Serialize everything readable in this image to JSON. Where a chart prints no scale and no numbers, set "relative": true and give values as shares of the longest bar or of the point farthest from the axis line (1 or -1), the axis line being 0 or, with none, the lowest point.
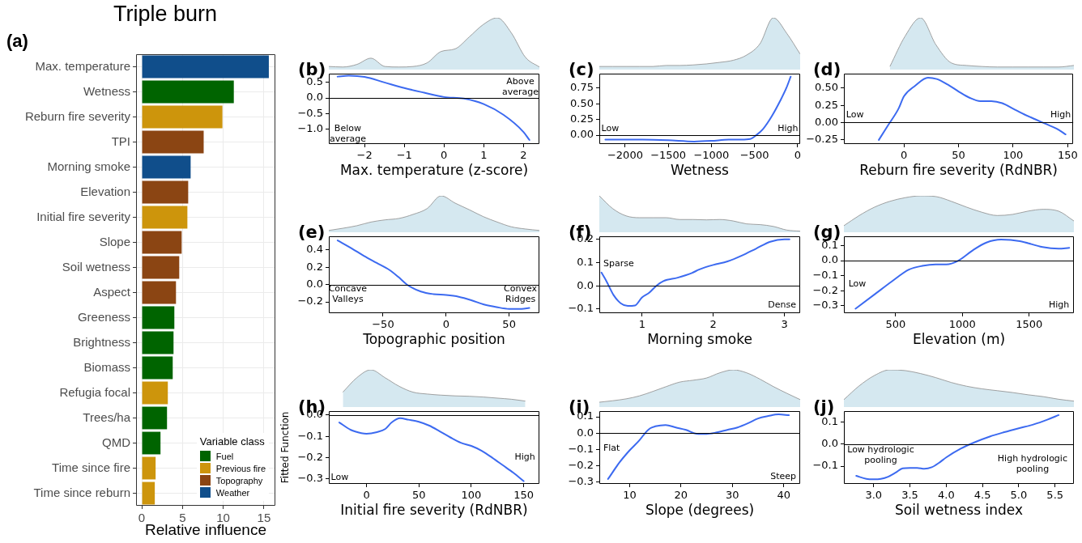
{
  "chart_data": [
    {
      "type": "bar",
      "orientation": "horizontal",
      "stacked": true,
      "title": "Triple burn",
      "xlabel": "Relative influence",
      "legend_title": "Variable class",
      "legend": "bottom right",
      "grid": true,
      "annotations": [
        "(a)"
      ],
      "categories": [
        "Max. temperature",
        "Wetness",
        "Reburn fire severity",
        "TPI",
        "Morning smoke",
        "Elevation",
        "Initial fire severity",
        "Slope",
        "Soil wetness",
        "Aspect",
        "Greeness",
        "Brightness",
        "Biomass",
        "Refugia focal",
        "Trees/ha",
        "QMD",
        "Time since fire",
        "Time since reburn"
      ],
      "series": [
        {
          "name": "Fuel",
          "color": "#006400",
          "values": [
            null,
            11.3,
            null,
            null,
            null,
            null,
            null,
            null,
            null,
            null,
            4.0,
            3.9,
            3.8,
            null,
            3.1,
            2.3,
            null,
            null
          ]
        },
        {
          "name": "Previous fire",
          "color": "#cd950c",
          "values": [
            null,
            null,
            9.9,
            null,
            null,
            null,
            5.6,
            null,
            null,
            null,
            null,
            null,
            null,
            3.2,
            null,
            null,
            1.7,
            1.6
          ]
        },
        {
          "name": "Topography",
          "color": "#8b4513",
          "values": [
            null,
            null,
            null,
            7.6,
            null,
            5.7,
            null,
            4.9,
            4.6,
            4.2,
            null,
            null,
            null,
            null,
            null,
            null,
            null,
            null
          ]
        },
        {
          "name": "Weather",
          "color": "#104e8b",
          "values": [
            15.6,
            null,
            null,
            null,
            6.0,
            null,
            null,
            null,
            null,
            null,
            null,
            null,
            null,
            null,
            null,
            null,
            null,
            null
          ]
        }
      ],
      "xlim": [
        -0.7,
        16.4
      ],
      "xticks": [
        0,
        5,
        10,
        15
      ]
    },
    {
      "type": "area",
      "relative": true,
      "tick_labels": false,
      "color": "#d5e8f0",
      "annotations": [
        "(b)"
      ],
      "categories": [
        null,
        null,
        null,
        null,
        null,
        null,
        null,
        null,
        null,
        null,
        null,
        null,
        null,
        null,
        null,
        null
      ],
      "values": [
        0.06,
        0.05,
        0.1,
        0.22,
        0.06,
        0.05,
        0.06,
        0.13,
        0.35,
        0.4,
        0.63,
        0.87,
        1,
        0.71,
        0.24,
        0.05
      ]
    },
    {
      "type": "line",
      "color": "#3c6af0",
      "xlabel": "Max. temperature (z-score)",
      "annotations": [
        "Below\naverage",
        "Above\naverage"
      ],
      "ref_lines": [
        {
          "axis": "y",
          "value": 0
        }
      ],
      "x": [
        -2.68,
        -2.4,
        -2,
        -1.5,
        -1,
        -0.5,
        0,
        0.5,
        1,
        1.5,
        2,
        2.15
      ],
      "values": [
        0.69,
        0.72,
        0.68,
        0.5,
        0.32,
        0.17,
        0.03,
        -0.02,
        -0.2,
        -0.55,
        -1.1,
        -1.36
      ],
      "xlim": [
        -2.9,
        2.4
      ],
      "xticks": [
        {
          "value": -2,
          "label": "−2"
        },
        {
          "value": -1,
          "label": "−1"
        },
        0,
        1,
        2
      ],
      "ylim": [
        -1.49,
        0.79
      ],
      "yticks": [
        {
          "value": -1,
          "label": "−1.0"
        },
        {
          "value": -0.5,
          "label": "−0.5"
        },
        {
          "value": 0,
          "label": "0.0"
        },
        0.5
      ]
    },
    {
      "type": "area",
      "relative": true,
      "tick_labels": false,
      "color": "#d5e8f0",
      "annotations": [
        "(c)"
      ],
      "categories": [
        null,
        null,
        null,
        null,
        null,
        null,
        null,
        null,
        null,
        null,
        null,
        null,
        null,
        null,
        null,
        null
      ],
      "values": [
        0.06,
        0.06,
        0.06,
        0.06,
        0.06,
        0.08,
        0.08,
        0.09,
        0.11,
        0.14,
        0.18,
        0.28,
        0.5,
        1,
        0.7,
        0.3
      ]
    },
    {
      "type": "line",
      "color": "#3c6af0",
      "xlabel": "Wetness",
      "annotations": [
        "Low",
        "High"
      ],
      "ref_lines": [
        {
          "axis": "y",
          "value": 0
        }
      ],
      "x": [
        -2230,
        -1800,
        -1500,
        -1200,
        -1000,
        -800,
        -650,
        -550,
        -480,
        -400,
        -300,
        -200,
        -130,
        -80
      ],
      "values": [
        -0.07,
        -0.07,
        -0.08,
        -0.1,
        -0.09,
        -0.07,
        -0.07,
        -0.06,
        0,
        0.1,
        0.3,
        0.55,
        0.75,
        0.93
      ],
      "xlim": [
        -2300,
        30
      ],
      "xticks": [
        {
          "value": -2000,
          "label": "−2000"
        },
        {
          "value": -1500,
          "label": "−1500"
        },
        {
          "value": -1000,
          "label": "−1000"
        },
        {
          "value": -500,
          "label": "−500"
        },
        0
      ],
      "ylim": [
        -0.14,
        0.98
      ],
      "yticks": [
        {
          "value": 0,
          "label": "0.00"
        },
        0.25,
        {
          "value": 0.5,
          "label": "0.50"
        },
        0.75
      ]
    },
    {
      "type": "area",
      "relative": true,
      "tick_labels": false,
      "color": "#d5e8f0",
      "annotations": [
        "(d)"
      ],
      "categories": [
        null,
        null,
        null,
        null,
        null,
        null,
        null,
        null,
        null,
        null,
        null,
        null,
        null,
        null,
        null,
        null
      ],
      "values": [
        null,
        null,
        null,
        0.06,
        0.65,
        1,
        0.48,
        0.13,
        0.08,
        0.06,
        0.05,
        0.05,
        0.05,
        0.05,
        0.05,
        0.08
      ]
    },
    {
      "type": "line",
      "color": "#3c6af0",
      "xlabel": "Reburn fire severity (RdNBR)",
      "annotations": [
        "Low",
        "High"
      ],
      "ref_lines": [
        {
          "axis": "y",
          "value": 0
        }
      ],
      "x": [
        -23,
        -15,
        -5,
        0,
        10,
        22,
        30,
        40,
        50,
        60,
        70,
        80,
        90,
        100,
        110,
        120,
        130,
        140,
        148
      ],
      "values": [
        -0.25,
        -0.05,
        0.2,
        0.38,
        0.53,
        0.65,
        0.63,
        0.55,
        0.45,
        0.36,
        0.31,
        0.31,
        0.28,
        0.2,
        0.12,
        0.05,
        -0.02,
        -0.09,
        -0.17
      ],
      "xlim": [
        -55,
        155
      ],
      "xticks": [
        0,
        50,
        100,
        150
      ],
      "ylim": [
        -0.31,
        0.71
      ],
      "yticks": [
        {
          "value": -0.25,
          "label": "−0.25"
        },
        {
          "value": 0,
          "label": "0.00"
        },
        0.25,
        {
          "value": 0.5,
          "label": "0.50"
        }
      ]
    },
    {
      "type": "area",
      "relative": true,
      "tick_labels": false,
      "color": "#d5e8f0",
      "annotations": [
        "(e)"
      ],
      "categories": [
        null,
        null,
        null,
        null,
        null,
        null,
        null,
        null,
        null,
        null,
        null,
        null,
        null,
        null,
        null,
        null
      ],
      "values": [
        0.05,
        0.11,
        0.18,
        0.28,
        0.34,
        0.38,
        0.49,
        0.65,
        1,
        0.8,
        0.62,
        0.43,
        0.28,
        0.15,
        0.09,
        0.05
      ]
    },
    {
      "type": "line",
      "color": "#3c6af0",
      "xlabel": "Topographic position",
      "annotations": [
        "Concave\nValleys",
        "Convex\nRidges"
      ],
      "ref_lines": [
        {
          "axis": "y",
          "value": 0
        }
      ],
      "x": [
        -86,
        -75,
        -65,
        -55,
        -45,
        -38,
        -31,
        -20,
        -10,
        0,
        10,
        20,
        30,
        40,
        50,
        60,
        66
      ],
      "values": [
        0.51,
        0.42,
        0.33,
        0.25,
        0.17,
        0.09,
        0,
        -0.08,
        -0.11,
        -0.12,
        -0.14,
        -0.18,
        -0.23,
        -0.26,
        -0.28,
        -0.28,
        -0.27
      ],
      "xlim": [
        -93,
        74
      ],
      "xticks": [
        {
          "value": -50,
          "label": "−50"
        },
        0,
        50
      ],
      "ylim": [
        -0.33,
        0.56
      ],
      "yticks": [
        {
          "value": -0.2,
          "label": "−0.2"
        },
        {
          "value": 0,
          "label": "0.0"
        },
        0.2,
        0.4
      ]
    },
    {
      "type": "area",
      "relative": true,
      "tick_labels": false,
      "color": "#d5e8f0",
      "annotations": [
        "(f)"
      ],
      "categories": [
        null,
        null,
        null,
        null,
        null,
        null,
        null,
        null,
        null,
        null,
        null,
        null,
        null,
        null,
        null,
        null
      ],
      "values": [
        1,
        0.65,
        0.45,
        0.4,
        0.4,
        0.4,
        0.35,
        0.35,
        0.34,
        0.35,
        0.31,
        0.23,
        0.21,
        0.16,
        0.06,
        0.03
      ]
    },
    {
      "type": "line",
      "color": "#3c6af0",
      "xlabel": "Morning smoke",
      "annotations": [
        "Sparse",
        "Dense"
      ],
      "ref_lines": [
        {
          "axis": "y",
          "value": 0
        }
      ],
      "x": [
        0.43,
        0.5,
        0.6,
        0.7,
        0.8,
        0.9,
        1.0,
        1.1,
        1.2,
        1.3,
        1.5,
        1.7,
        1.8,
        2.0,
        2.2,
        2.4,
        2.6,
        2.8,
        3.0,
        3.07
      ],
      "values": [
        0.057,
        0.02,
        -0.04,
        -0.075,
        -0.087,
        -0.085,
        -0.05,
        -0.03,
        0.0,
        0.02,
        0.035,
        0.055,
        0.07,
        0.09,
        0.105,
        0.13,
        0.16,
        0.19,
        0.2,
        0.2
      ],
      "xlim": [
        0.4,
        3.22
      ],
      "xticks": [
        1,
        2,
        3
      ],
      "ylim": [
        -0.118,
        0.214
      ],
      "yticks": [
        {
          "value": -0.1,
          "label": "−0.1"
        },
        {
          "value": 0,
          "label": "0.0"
        },
        0.1,
        0.2
      ]
    },
    {
      "type": "area",
      "relative": true,
      "tick_labels": false,
      "color": "#d5e8f0",
      "annotations": [
        "(g)"
      ],
      "categories": [
        null,
        null,
        null,
        null,
        null,
        null,
        null,
        null,
        null,
        null,
        null,
        null,
        null,
        null,
        null,
        null
      ],
      "values": [
        0.18,
        0.46,
        0.69,
        0.85,
        0.95,
        1,
        0.98,
        0.85,
        0.69,
        0.55,
        0.46,
        0.49,
        0.58,
        0.63,
        0.58,
        0.31
      ]
    },
    {
      "type": "line",
      "color": "#3c6af0",
      "xlabel": "Elevation (m)",
      "annotations": [
        "Low",
        "High"
      ],
      "ref_lines": [
        {
          "axis": "y",
          "value": 0
        }
      ],
      "x": [
        200,
        350,
        470,
        600,
        700,
        800,
        880,
        970,
        1080,
        1180,
        1290,
        1430,
        1600,
        1720,
        1800
      ],
      "values": [
        -0.32,
        -0.22,
        -0.14,
        -0.06,
        -0.035,
        -0.025,
        -0.025,
        0.0,
        0.07,
        0.12,
        0.14,
        0.13,
        0.09,
        0.08,
        0.085
      ],
      "xlim": [
        113,
        1835
      ],
      "xticks": [
        500,
        1000,
        1500
      ],
      "ylim": [
        -0.35,
        0.163
      ],
      "yticks": [
        {
          "value": -0.3,
          "label": "−0.3"
        },
        {
          "value": -0.2,
          "label": "−0.2"
        },
        {
          "value": -0.1,
          "label": "−0.1"
        },
        {
          "value": 0,
          "label": "0.0"
        },
        0.1
      ]
    },
    {
      "type": "area",
      "relative": true,
      "tick_labels": false,
      "color": "#d5e8f0",
      "annotations": [
        "(h)"
      ],
      "categories": [
        null,
        null,
        null,
        null,
        null,
        null,
        null,
        null,
        null,
        null,
        null,
        null,
        null,
        null,
        null,
        null
      ],
      "values": [
        null,
        0.4,
        0.79,
        1,
        0.79,
        0.56,
        0.4,
        0.35,
        0.32,
        0.3,
        0.29,
        0.27,
        0.24,
        0.21,
        0.16,
        null
      ]
    },
    {
      "type": "line",
      "color": "#3c6af0",
      "xlabel": "Initial fire severity (RdNBR)",
      "ylabel": "Fitted Function",
      "annotations": [
        "Low",
        "High"
      ],
      "ref_lines": [
        {
          "axis": "y",
          "value": 0
        }
      ],
      "x": [
        -26,
        -15,
        -5,
        0,
        10,
        18,
        24,
        32,
        40,
        50,
        60,
        70,
        80,
        90,
        100,
        110,
        120,
        130,
        140,
        150
      ],
      "values": [
        -0.035,
        -0.07,
        -0.085,
        -0.088,
        -0.08,
        -0.065,
        -0.035,
        -0.015,
        -0.022,
        -0.032,
        -0.05,
        -0.077,
        -0.105,
        -0.13,
        -0.145,
        -0.168,
        -0.2,
        -0.235,
        -0.27,
        -0.31
      ],
      "xlim": [
        -36,
        165
      ],
      "xticks": [
        0,
        50,
        100,
        150
      ],
      "ylim": [
        -0.323,
        0.019
      ],
      "yticks": [
        {
          "value": -0.3,
          "label": "−0.3"
        },
        {
          "value": -0.2,
          "label": "−0.2"
        },
        {
          "value": -0.1,
          "label": "−0.1"
        },
        {
          "value": 0,
          "label": "0.0"
        }
      ]
    },
    {
      "type": "area",
      "relative": true,
      "tick_labels": false,
      "color": "#d5e8f0",
      "annotations": [
        "(i)"
      ],
      "categories": [
        null,
        null,
        null,
        null,
        null,
        null,
        null,
        null,
        null,
        null,
        null,
        null,
        null,
        null,
        null,
        null
      ],
      "values": [
        0.13,
        0.17,
        0.22,
        0.3,
        0.42,
        0.55,
        0.67,
        0.72,
        0.78,
        0.92,
        1,
        0.92,
        0.75,
        0.55,
        0.37,
        0.2
      ]
    },
    {
      "type": "line",
      "color": "#3c6af0",
      "xlabel": "Slope (degrees)",
      "annotations": [
        "Flat",
        "Steep"
      ],
      "ref_lines": [
        {
          "axis": "y",
          "value": 0
        }
      ],
      "x": [
        5.8,
        8,
        10,
        12,
        13,
        14,
        15,
        17,
        19,
        21,
        23,
        25,
        27,
        29,
        31,
        33,
        35,
        37,
        39,
        41
      ],
      "values": [
        -0.28,
        -0.18,
        -0.105,
        -0.04,
        0,
        0.03,
        0.042,
        0.05,
        0.035,
        0.02,
        -0.003,
        -0.005,
        0.005,
        0.02,
        0.035,
        0.06,
        0.09,
        0.105,
        0.115,
        0.11
      ],
      "xlim": [
        4.1,
        43.2
      ],
      "xticks": [
        10,
        20,
        30,
        40
      ],
      "ylim": [
        -0.31,
        0.136
      ],
      "yticks": [
        {
          "value": -0.3,
          "label": "−0.3"
        },
        {
          "value": -0.2,
          "label": "−0.2"
        },
        {
          "value": -0.1,
          "label": "−0.1"
        },
        {
          "value": 0,
          "label": "0.0"
        },
        0.1
      ]
    },
    {
      "type": "area",
      "relative": true,
      "tick_labels": false,
      "color": "#d5e8f0",
      "annotations": [
        "(j)"
      ],
      "categories": [
        null,
        null,
        null,
        null,
        null,
        null,
        null,
        null,
        null,
        null,
        null,
        null,
        null,
        null,
        null,
        null
      ],
      "values": [
        0.2,
        0.57,
        0.85,
        1,
        0.98,
        0.9,
        0.79,
        0.66,
        0.56,
        0.49,
        0.44,
        0.39,
        0.33,
        0.28,
        0.21,
        0.16
      ]
    },
    {
      "type": "line",
      "color": "#3c6af0",
      "xlabel": "Soil wetness index",
      "annotations": [
        "Low hydrologic\npooling",
        "High hydrologic\npooling"
      ],
      "ref_lines": [
        {
          "axis": "y",
          "value": 0
        }
      ],
      "x": [
        2.76,
        2.9,
        3.0,
        3.1,
        3.2,
        3.3,
        3.4,
        3.5,
        3.6,
        3.7,
        3.8,
        3.9,
        4.0,
        4.2,
        4.4,
        4.6,
        4.8,
        5.0,
        5.2,
        5.4,
        5.55
      ],
      "values": [
        -0.144,
        -0.158,
        -0.16,
        -0.158,
        -0.148,
        -0.13,
        -0.11,
        -0.108,
        -0.108,
        -0.112,
        -0.105,
        -0.085,
        -0.06,
        -0.02,
        0.01,
        0.035,
        0.055,
        0.073,
        0.09,
        0.113,
        0.133
      ],
      "xlim": [
        2.59,
        5.76
      ],
      "xticks": [
        {
          "value": 3,
          "label": "3.0"
        },
        3.5,
        {
          "value": 4,
          "label": "4.0"
        },
        4.5,
        {
          "value": 5,
          "label": "5.0"
        },
        5.5
      ],
      "ylim": [
        -0.181,
        0.152
      ],
      "yticks": [
        {
          "value": -0.1,
          "label": "−0.1"
        },
        {
          "value": 0,
          "label": "0.0"
        },
        0.1
      ]
    }
  ]
}
